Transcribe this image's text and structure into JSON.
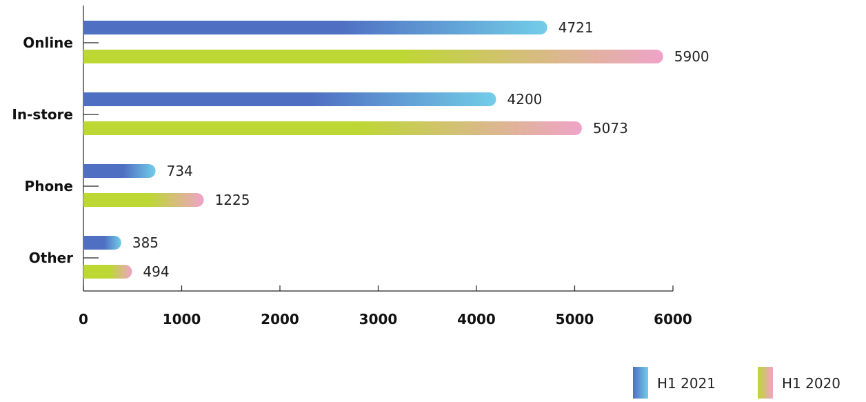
{
  "chart_data": {
    "type": "bar",
    "orientation": "horizontal",
    "categories": [
      "Online",
      "In-store",
      "Phone",
      "Other"
    ],
    "series": [
      {
        "name": "H1 2021",
        "values": [
          4721,
          4200,
          734,
          385
        ],
        "value_labels": [
          "4721",
          "4200",
          "734",
          "385"
        ],
        "gradient": [
          "#4f6fc2",
          "#72cde8"
        ]
      },
      {
        "name": "H1 2020",
        "values": [
          5900,
          5073,
          1225,
          494
        ],
        "value_labels": [
          "5900",
          "5073",
          "1225",
          "494"
        ],
        "gradient": [
          "#bdd734",
          "#efa3c8"
        ]
      }
    ],
    "xlim": [
      0,
      6000
    ],
    "xticks": [
      0,
      1000,
      2000,
      3000,
      4000,
      5000,
      6000
    ],
    "xtick_labels": [
      "0",
      "1000",
      "2000",
      "3000",
      "4000",
      "5000",
      "6000"
    ],
    "grid": false,
    "legend": "bottom-right",
    "axis_color": "#222222"
  }
}
